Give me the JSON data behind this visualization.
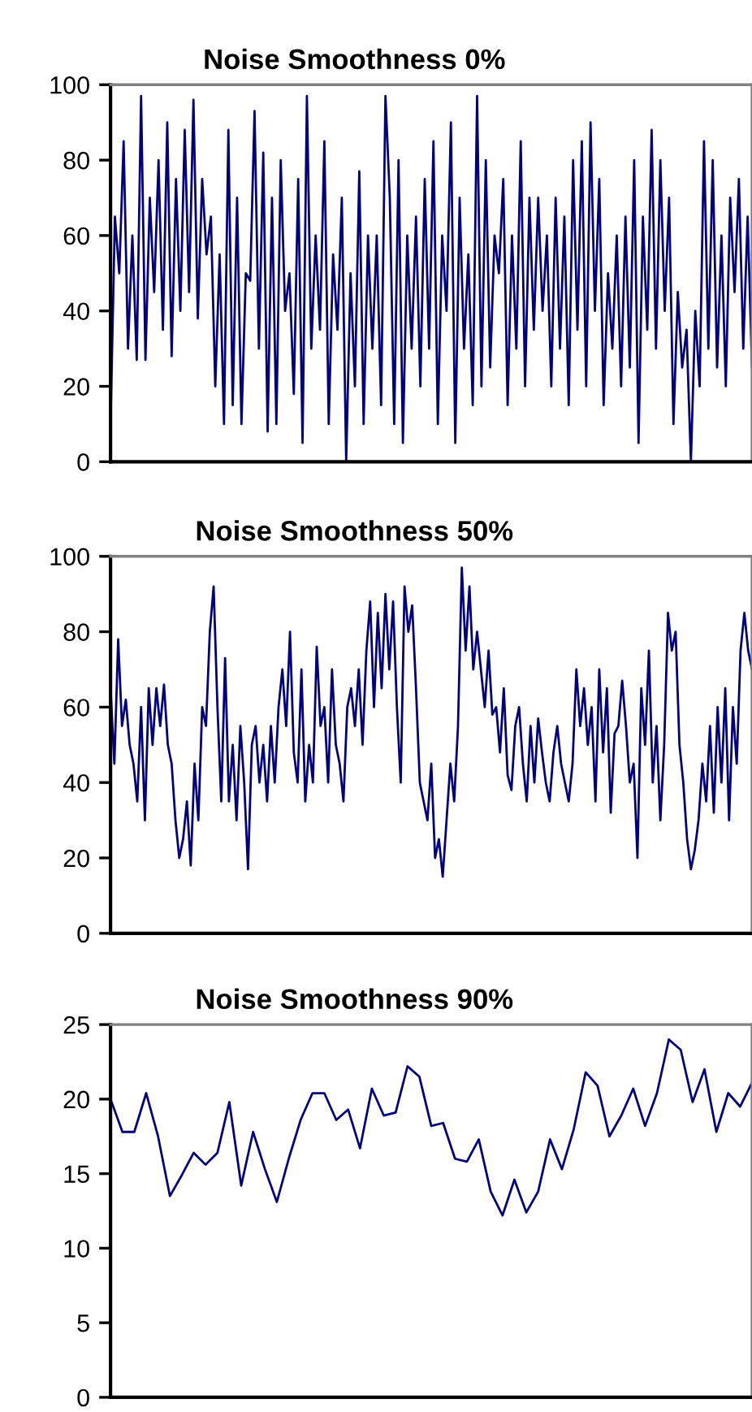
{
  "chart_data": [
    {
      "type": "line",
      "title": "Noise Smoothness 0%",
      "categories": [
        null,
        null,
        null,
        null,
        null,
        null,
        null,
        null,
        null,
        null,
        null,
        null,
        null,
        null,
        null,
        null,
        null,
        null,
        null,
        null,
        null,
        null,
        null,
        null,
        null,
        null,
        null,
        null,
        null,
        null,
        null,
        null,
        null,
        null,
        null,
        null,
        null,
        null,
        null,
        null,
        null,
        null,
        null,
        null,
        null,
        null,
        null,
        null,
        null,
        null,
        null,
        null,
        null,
        null,
        null,
        null,
        null,
        null,
        null,
        null,
        null,
        null,
        null,
        null,
        null,
        null,
        null,
        null,
        null,
        null,
        null,
        null,
        null,
        null,
        null,
        null,
        null,
        null,
        null,
        null,
        null,
        null,
        null,
        null,
        null,
        null,
        null,
        null,
        null,
        null,
        null,
        null,
        null,
        null,
        null,
        null,
        null,
        null,
        null,
        null,
        null,
        null,
        null,
        null,
        null,
        null,
        null,
        null,
        null,
        null,
        null,
        null,
        null,
        null,
        null,
        null,
        null,
        null,
        null,
        null,
        null,
        null,
        null,
        null,
        null,
        null,
        null,
        null,
        null,
        null,
        null,
        null,
        null,
        null,
        null,
        null,
        null,
        null,
        null,
        null,
        null,
        null,
        null,
        null,
        null,
        null,
        null,
        null
      ],
      "values": [
        10,
        65,
        50,
        85,
        30,
        60,
        27,
        97,
        27,
        70,
        45,
        80,
        35,
        90,
        28,
        75,
        40,
        88,
        45,
        96,
        38,
        75,
        55,
        65,
        20,
        55,
        10,
        88,
        15,
        70,
        10,
        50,
        48,
        93,
        30,
        82,
        8,
        70,
        10,
        80,
        40,
        50,
        18,
        75,
        5,
        97,
        30,
        60,
        35,
        85,
        10,
        55,
        35,
        70,
        0,
        50,
        20,
        77,
        10,
        60,
        30,
        60,
        15,
        97,
        70,
        10,
        80,
        5,
        60,
        30,
        65,
        20,
        75,
        30,
        85,
        10,
        60,
        40,
        90,
        5,
        70,
        30,
        55,
        15,
        97,
        20,
        80,
        25,
        60,
        50,
        75,
        15,
        60,
        30,
        85,
        20,
        70,
        35,
        70,
        40,
        60,
        20,
        70,
        30,
        65,
        15,
        80,
        35,
        85,
        20,
        90,
        40,
        75,
        15,
        50,
        30,
        60,
        20,
        65,
        25,
        80,
        5,
        65,
        35,
        88,
        30,
        80,
        40,
        70,
        10,
        45,
        25,
        35,
        0,
        40,
        20,
        85,
        30,
        80,
        25,
        60,
        20,
        70,
        45,
        75,
        30,
        65,
        25
      ],
      "color": "#000080",
      "ylim": [
        0,
        100
      ],
      "yticks": [
        0,
        20,
        40,
        60,
        80,
        100
      ],
      "grid": false,
      "legend": false
    },
    {
      "type": "line",
      "title": "Noise Smoothness 50%",
      "categories": [
        null,
        null,
        null,
        null,
        null,
        null,
        null,
        null,
        null,
        null,
        null,
        null,
        null,
        null,
        null,
        null,
        null,
        null,
        null,
        null,
        null,
        null,
        null,
        null,
        null,
        null,
        null,
        null,
        null,
        null,
        null,
        null,
        null,
        null,
        null,
        null,
        null,
        null,
        null,
        null,
        null,
        null,
        null,
        null,
        null,
        null,
        null,
        null,
        null,
        null,
        null,
        null,
        null,
        null,
        null,
        null,
        null,
        null,
        null,
        null,
        null,
        null,
        null,
        null,
        null,
        null,
        null,
        null,
        null,
        null,
        null,
        null,
        null,
        null,
        null,
        null,
        null,
        null,
        null,
        null,
        null,
        null,
        null,
        null,
        null,
        null,
        null,
        null,
        null,
        null,
        null,
        null,
        null,
        null,
        null,
        null,
        null,
        null,
        null,
        null,
        null,
        null,
        null,
        null,
        null,
        null,
        null,
        null,
        null,
        null,
        null,
        null,
        null,
        null,
        null,
        null,
        null,
        null,
        null,
        null,
        null,
        null,
        null,
        null,
        null,
        null,
        null,
        null,
        null,
        null,
        null,
        null,
        null,
        null,
        null,
        null,
        null,
        null,
        null,
        null,
        null,
        null,
        null,
        null,
        null,
        null,
        null,
        null,
        null,
        null,
        null,
        null,
        null,
        null,
        null,
        null,
        null,
        null,
        null,
        null,
        null,
        null,
        null,
        null,
        null,
        null,
        null,
        null,
        null
      ],
      "values": [
        65,
        45,
        78,
        55,
        62,
        50,
        45,
        35,
        60,
        30,
        65,
        50,
        65,
        55,
        66,
        50,
        45,
        30,
        20,
        25,
        35,
        18,
        45,
        30,
        60,
        55,
        80,
        92,
        60,
        35,
        73,
        35,
        50,
        30,
        55,
        40,
        17,
        50,
        55,
        40,
        50,
        35,
        55,
        40,
        60,
        70,
        55,
        80,
        48,
        40,
        70,
        35,
        50,
        40,
        76,
        55,
        60,
        40,
        70,
        50,
        45,
        35,
        60,
        65,
        55,
        70,
        50,
        75,
        88,
        60,
        85,
        65,
        90,
        70,
        88,
        60,
        40,
        92,
        80,
        87,
        65,
        40,
        35,
        30,
        45,
        20,
        25,
        15,
        30,
        45,
        35,
        55,
        97,
        75,
        92,
        70,
        80,
        70,
        60,
        75,
        58,
        60,
        48,
        65,
        42,
        38,
        55,
        60,
        45,
        35,
        55,
        40,
        57,
        48,
        40,
        35,
        48,
        55,
        45,
        40,
        35,
        45,
        70,
        55,
        65,
        50,
        60,
        35,
        70,
        48,
        65,
        32,
        53,
        55,
        67,
        55,
        40,
        45,
        20,
        65,
        50,
        75,
        40,
        55,
        30,
        50,
        85,
        75,
        80,
        50,
        40,
        25,
        17,
        22,
        30,
        45,
        35,
        55,
        32,
        60,
        40,
        65,
        30,
        60,
        45,
        75,
        85,
        75,
        70
      ],
      "color": "#000080",
      "ylim": [
        0,
        100
      ],
      "yticks": [
        0,
        20,
        40,
        60,
        80,
        100
      ],
      "grid": false,
      "legend": false
    },
    {
      "type": "line",
      "title": "Noise Smoothness 90%",
      "categories": [
        null,
        null,
        null,
        null,
        null,
        null,
        null,
        null,
        null,
        null,
        null,
        null,
        null,
        null,
        null,
        null,
        null,
        null,
        null,
        null,
        null,
        null,
        null,
        null,
        null,
        null,
        null,
        null,
        null,
        null,
        null,
        null,
        null,
        null,
        null,
        null,
        null,
        null,
        null,
        null,
        null,
        null,
        null,
        null,
        null,
        null,
        null,
        null,
        null,
        null,
        null,
        null,
        null,
        null,
        null
      ],
      "values": [
        20.0,
        17.8,
        17.8,
        20.4,
        17.5,
        13.5,
        14.9,
        16.4,
        15.6,
        16.4,
        19.8,
        14.2,
        17.8,
        15.3,
        13.1,
        16.0,
        18.6,
        20.4,
        20.4,
        18.6,
        19.3,
        16.7,
        20.7,
        18.9,
        19.1,
        22.2,
        21.5,
        18.2,
        18.4,
        16.0,
        15.8,
        17.3,
        13.8,
        12.2,
        14.6,
        12.4,
        13.8,
        17.3,
        15.3,
        18.0,
        21.8,
        20.9,
        17.5,
        18.9,
        20.7,
        18.2,
        20.4,
        24.0,
        23.3,
        19.8,
        22.0,
        17.8,
        20.4,
        19.5,
        21.1
      ],
      "color": "#000080",
      "ylim": [
        0,
        25
      ],
      "yticks": [
        0,
        5,
        10,
        15,
        20,
        25
      ],
      "grid": false,
      "legend": false
    }
  ]
}
